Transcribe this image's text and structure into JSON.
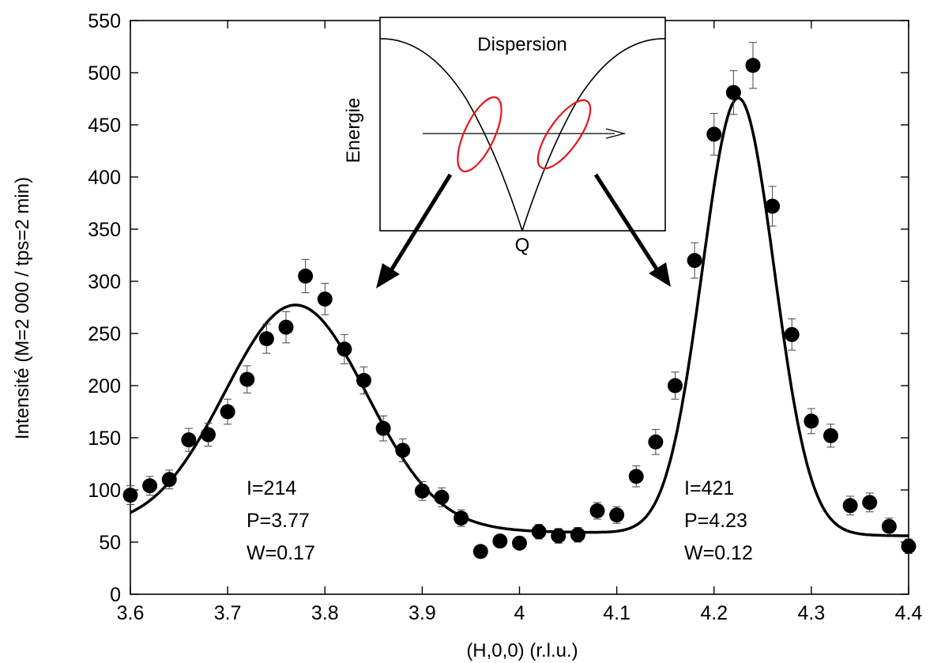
{
  "chart_data": {
    "type": "scatter",
    "xlabel": "(H,0,0) (r.l.u.)",
    "ylabel": "Intensité (M=2 000 / tps=2 min)",
    "xlim": [
      3.6,
      4.4
    ],
    "ylim": [
      0,
      550
    ],
    "xticks": [
      3.6,
      3.7,
      3.8,
      3.9,
      4.0,
      4.1,
      4.2,
      4.3,
      4.4
    ],
    "xtick_labels": [
      "3.6",
      "3.7",
      "3.8",
      "3.9",
      "4",
      "4.1",
      "4.2",
      "4.3",
      "4.4"
    ],
    "yticks": [
      0,
      50,
      100,
      150,
      200,
      250,
      300,
      350,
      400,
      450,
      500,
      550
    ],
    "ytick_labels": [
      "0",
      "50",
      "100",
      "150",
      "200",
      "250",
      "300",
      "350",
      "400",
      "450",
      "500",
      "550"
    ],
    "grid": false,
    "points": [
      {
        "x": 3.6,
        "y": 95,
        "err": 9
      },
      {
        "x": 3.62,
        "y": 104,
        "err": 9
      },
      {
        "x": 3.64,
        "y": 110,
        "err": 9
      },
      {
        "x": 3.66,
        "y": 148,
        "err": 11
      },
      {
        "x": 3.68,
        "y": 153,
        "err": 11
      },
      {
        "x": 3.7,
        "y": 175,
        "err": 12
      },
      {
        "x": 3.72,
        "y": 206,
        "err": 13
      },
      {
        "x": 3.74,
        "y": 245,
        "err": 14
      },
      {
        "x": 3.76,
        "y": 256,
        "err": 15
      },
      {
        "x": 3.78,
        "y": 305,
        "err": 16
      },
      {
        "x": 3.8,
        "y": 283,
        "err": 15
      },
      {
        "x": 3.82,
        "y": 235,
        "err": 14
      },
      {
        "x": 3.84,
        "y": 205,
        "err": 13
      },
      {
        "x": 3.86,
        "y": 159,
        "err": 12
      },
      {
        "x": 3.88,
        "y": 138,
        "err": 11
      },
      {
        "x": 3.9,
        "y": 99,
        "err": 9
      },
      {
        "x": 3.92,
        "y": 93,
        "err": 9
      },
      {
        "x": 3.94,
        "y": 73,
        "err": 8
      },
      {
        "x": 3.96,
        "y": 41,
        "err": 0
      },
      {
        "x": 3.98,
        "y": 51,
        "err": 0
      },
      {
        "x": 4.0,
        "y": 49,
        "err": 0
      },
      {
        "x": 4.02,
        "y": 60,
        "err": 7
      },
      {
        "x": 4.04,
        "y": 56,
        "err": 7
      },
      {
        "x": 4.06,
        "y": 57,
        "err": 7
      },
      {
        "x": 4.08,
        "y": 80,
        "err": 8
      },
      {
        "x": 4.1,
        "y": 76,
        "err": 8
      },
      {
        "x": 4.12,
        "y": 113,
        "err": 10
      },
      {
        "x": 4.14,
        "y": 146,
        "err": 12
      },
      {
        "x": 4.16,
        "y": 200,
        "err": 13
      },
      {
        "x": 4.18,
        "y": 320,
        "err": 17
      },
      {
        "x": 4.2,
        "y": 441,
        "err": 20
      },
      {
        "x": 4.22,
        "y": 481,
        "err": 21
      },
      {
        "x": 4.24,
        "y": 507,
        "err": 22
      },
      {
        "x": 4.26,
        "y": 372,
        "err": 19
      },
      {
        "x": 4.28,
        "y": 249,
        "err": 15
      },
      {
        "x": 4.3,
        "y": 166,
        "err": 12
      },
      {
        "x": 4.32,
        "y": 152,
        "err": 11
      },
      {
        "x": 4.34,
        "y": 85,
        "err": 9
      },
      {
        "x": 4.36,
        "y": 88,
        "err": 9
      },
      {
        "x": 4.38,
        "y": 65,
        "err": 8
      },
      {
        "x": 4.4,
        "y": 46,
        "err": 7
      }
    ],
    "fit": {
      "type": "line",
      "peaks": [
        {
          "amplitude": 215,
          "center": 3.77,
          "sigma": 0.073
        },
        {
          "amplitude": 418,
          "center": 4.225,
          "sigma": 0.037
        }
      ],
      "background": {
        "intercept": 60,
        "slope": -10,
        "reference_x": 4.0
      }
    },
    "annotations": [
      {
        "lines": [
          "I=214",
          "P=3.77",
          "W=0.17"
        ]
      },
      {
        "lines": [
          "I=421",
          "P=4.23",
          "W=0.12"
        ]
      }
    ],
    "inset": {
      "title": "Dispersion",
      "ylabel": "Energie",
      "xlabel": "Q",
      "ellipse_color": "#e8141b"
    }
  }
}
